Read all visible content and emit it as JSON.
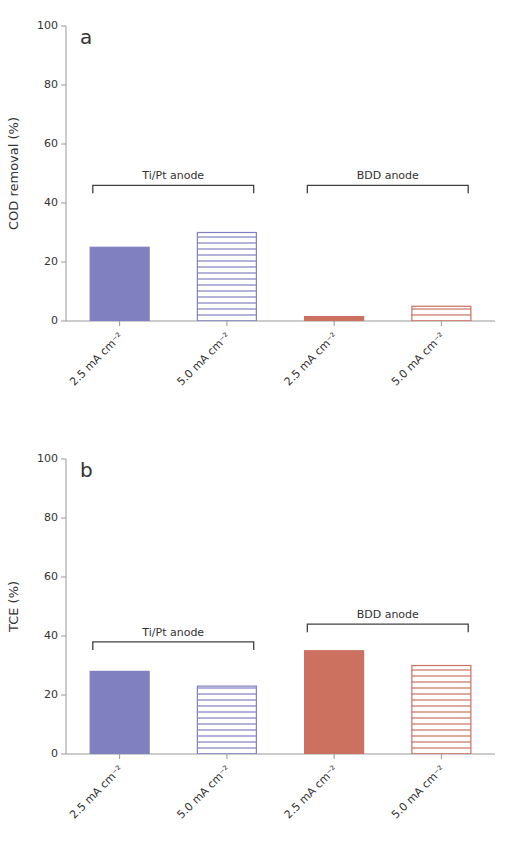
{
  "chart_data": [
    {
      "type": "bar",
      "title": "a",
      "y_label": "COD removal (%)",
      "categories": [
        "2.5 mA cm⁻²",
        "5.0 mA cm⁻²",
        "2.5 mA cm⁻²",
        "5.0 mA cm⁻²"
      ],
      "values": [
        25,
        30,
        1.5,
        5
      ],
      "colors": [
        "#8080c0",
        "#8080c0",
        "#cc7060",
        "#cc7060"
      ],
      "ylim": [
        0,
        100
      ],
      "yticks": [
        0,
        20,
        40,
        60,
        80,
        100
      ],
      "grid": false,
      "annotations": [
        {
          "text": "Ti/Pt anode",
          "y": 46
        },
        {
          "text": "BDD anode",
          "y": 46
        }
      ]
    },
    {
      "type": "bar",
      "title": "b",
      "y_label": "TCE (%)",
      "categories": [
        "2.5 mA cm⁻²",
        "5.0 mA cm⁻²",
        "2.5 mA cm⁻²",
        "5.0 mA cm⁻²"
      ],
      "values": [
        28,
        23,
        35,
        30
      ],
      "colors": [
        "#8080c0",
        "#8080c0",
        "#cc7060",
        "#cc7060"
      ],
      "ylim": [
        0,
        100
      ],
      "yticks": [
        0,
        20,
        40,
        60,
        80,
        100
      ],
      "grid": false,
      "annotations": [
        {
          "text": "Ti/Pt anode",
          "y": 38
        },
        {
          "text": "BDD anode",
          "y": 44
        }
      ]
    }
  ]
}
